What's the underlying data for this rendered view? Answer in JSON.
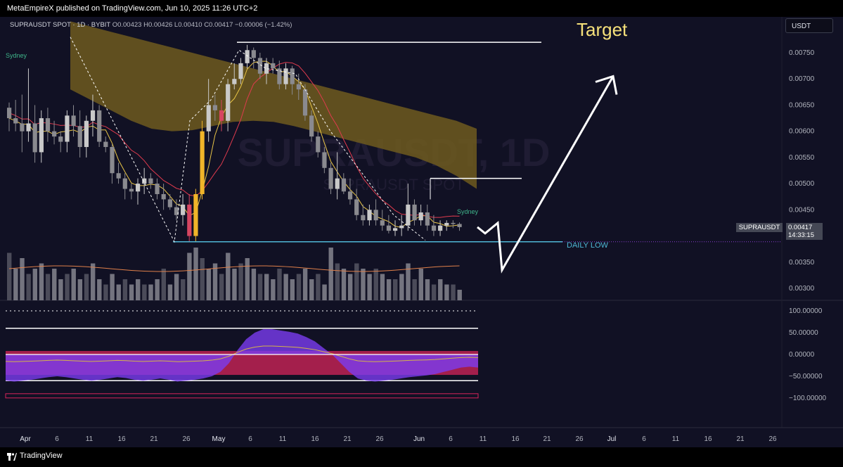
{
  "header": {
    "published_text": "MetaEmpireX published on TradingView.com, Jun 10, 2025 11:26 UTC+2"
  },
  "symbol_bar": {
    "symbol": "SUPRAUSDT SPOT · 1D · BYBIT",
    "open": "O0.00423",
    "high": "H0.00426",
    "low": "L0.00410",
    "close": "C0.00417",
    "change": "−0.00006 (−1.42%)"
  },
  "currency_button": "USDT",
  "watermark": {
    "main": "SUPRAUSDT, 1D",
    "sub": "SUPRAUSDT SPOT"
  },
  "annotations": {
    "target": "Target",
    "daily_low": "DAILY LOW",
    "session_left": "Sydney",
    "session_right": "Sydney"
  },
  "price_tag": {
    "symbol": "SUPRAUSDT",
    "price": "0.00417",
    "countdown": "14:33:15"
  },
  "footer": {
    "brand": "TradingView"
  },
  "colors": {
    "background": "#111124",
    "cloud": "#6e5a1e",
    "candle_up": "#c9c9c9",
    "candle_down": "#8a8a8f",
    "candle_highlight_up": "#f0b429",
    "candle_highlight_down": "#d64561",
    "target_text": "#f5e07a",
    "daily_low_line": "#4fb8d6",
    "oscillator_purple": "#7b3cf0",
    "oscillator_red": "#d6245a"
  },
  "chart_data": {
    "type": "candlestick",
    "timeframe": "1D",
    "ylim": [
      0.0029,
      0.0078
    ],
    "y_ticks": [
      "0.00750",
      "0.00700",
      "0.00650",
      "0.00600",
      "0.00550",
      "0.00500",
      "0.00450",
      "0.00350",
      "0.00300"
    ],
    "x_ticks": [
      "Apr",
      "6",
      "11",
      "16",
      "21",
      "26",
      "May",
      "6",
      "11",
      "16",
      "21",
      "26",
      "Jun",
      "6",
      "11",
      "16",
      "21",
      "26",
      "Jul",
      "6",
      "11",
      "16",
      "21",
      "26"
    ],
    "candles": [
      [
        0.00645,
        0.00655,
        0.006,
        0.00625
      ],
      [
        0.00625,
        0.0066,
        0.006,
        0.00615
      ],
      [
        0.00615,
        0.0067,
        0.0056,
        0.006
      ],
      [
        0.006,
        0.0072,
        0.0058,
        0.00615
      ],
      [
        0.00615,
        0.0065,
        0.0054,
        0.0056
      ],
      [
        0.0056,
        0.0064,
        0.0054,
        0.00625
      ],
      [
        0.00625,
        0.00645,
        0.0058,
        0.006
      ],
      [
        0.006,
        0.0062,
        0.00575,
        0.0059
      ],
      [
        0.0059,
        0.006,
        0.0056,
        0.0058
      ],
      [
        0.0058,
        0.0064,
        0.0056,
        0.0063
      ],
      [
        0.0063,
        0.0065,
        0.0059,
        0.0061
      ],
      [
        0.0061,
        0.0064,
        0.0055,
        0.0057
      ],
      [
        0.0057,
        0.0063,
        0.0055,
        0.0062
      ],
      [
        0.0062,
        0.0067,
        0.0059,
        0.0064
      ],
      [
        0.0064,
        0.0065,
        0.0057,
        0.0058
      ],
      [
        0.0058,
        0.0059,
        0.0056,
        0.0057
      ],
      [
        0.0057,
        0.00575,
        0.005,
        0.0052
      ],
      [
        0.0052,
        0.0054,
        0.005,
        0.0051
      ],
      [
        0.0051,
        0.0052,
        0.0047,
        0.0049
      ],
      [
        0.0049,
        0.005,
        0.0047,
        0.00485
      ],
      [
        0.00485,
        0.0051,
        0.0046,
        0.005
      ],
      [
        0.005,
        0.0053,
        0.0048,
        0.0051
      ],
      [
        0.0051,
        0.0052,
        0.0049,
        0.005
      ],
      [
        0.005,
        0.0051,
        0.0047,
        0.0048
      ],
      [
        0.0048,
        0.005,
        0.0045,
        0.0047
      ],
      [
        0.0047,
        0.0048,
        0.0045,
        0.00455
      ],
      [
        0.00455,
        0.0047,
        0.0043,
        0.0044
      ],
      [
        0.0044,
        0.0048,
        0.0042,
        0.0046
      ],
      [
        0.0046,
        0.0048,
        0.0039,
        0.004
      ],
      [
        0.004,
        0.0049,
        0.0039,
        0.0048
      ],
      [
        0.0048,
        0.0062,
        0.0047,
        0.006
      ],
      [
        0.006,
        0.007,
        0.0058,
        0.0065
      ],
      [
        0.0065,
        0.0067,
        0.0062,
        0.0064
      ],
      [
        0.0064,
        0.0066,
        0.006,
        0.0062
      ],
      [
        0.0062,
        0.007,
        0.006,
        0.0069
      ],
      [
        0.0069,
        0.0073,
        0.0068,
        0.007
      ],
      [
        0.007,
        0.0074,
        0.0069,
        0.0073
      ],
      [
        0.0073,
        0.00765,
        0.0072,
        0.00755
      ],
      [
        0.00755,
        0.0076,
        0.0072,
        0.0074
      ],
      [
        0.0074,
        0.0075,
        0.007,
        0.0071
      ],
      [
        0.0071,
        0.0074,
        0.0069,
        0.0073
      ],
      [
        0.0073,
        0.0074,
        0.0071,
        0.0072
      ],
      [
        0.0072,
        0.00735,
        0.0068,
        0.0069
      ],
      [
        0.0069,
        0.0073,
        0.0068,
        0.0072
      ],
      [
        0.0072,
        0.00725,
        0.0067,
        0.0069
      ],
      [
        0.0069,
        0.0071,
        0.0066,
        0.0068
      ],
      [
        0.0068,
        0.0069,
        0.0062,
        0.0063
      ],
      [
        0.0063,
        0.0064,
        0.0058,
        0.0059
      ],
      [
        0.0059,
        0.006,
        0.0055,
        0.0056
      ],
      [
        0.0056,
        0.0057,
        0.0052,
        0.0053
      ],
      [
        0.0053,
        0.0054,
        0.0048,
        0.0049
      ],
      [
        0.0049,
        0.0056,
        0.0047,
        0.0051
      ],
      [
        0.0051,
        0.0052,
        0.0048,
        0.00485
      ],
      [
        0.00485,
        0.0051,
        0.0046,
        0.0047
      ],
      [
        0.0047,
        0.0049,
        0.0043,
        0.0044
      ],
      [
        0.0044,
        0.0046,
        0.0042,
        0.0043
      ],
      [
        0.0043,
        0.0046,
        0.0042,
        0.0045
      ],
      [
        0.0045,
        0.0047,
        0.0042,
        0.0043
      ],
      [
        0.0043,
        0.0045,
        0.0041,
        0.0042
      ],
      [
        0.0042,
        0.0044,
        0.00405,
        0.0041
      ],
      [
        0.0041,
        0.0043,
        0.004,
        0.00415
      ],
      [
        0.00415,
        0.0044,
        0.004,
        0.0042
      ],
      [
        0.0042,
        0.005,
        0.0041,
        0.0046
      ],
      [
        0.0046,
        0.0047,
        0.0042,
        0.0043
      ],
      [
        0.0043,
        0.0046,
        0.0042,
        0.00445
      ],
      [
        0.00445,
        0.0046,
        0.0041,
        0.0042
      ],
      [
        0.0042,
        0.0044,
        0.004,
        0.0041
      ],
      [
        0.0041,
        0.0043,
        0.004,
        0.0042
      ],
      [
        0.0042,
        0.0043,
        0.0041,
        0.00425
      ],
      [
        0.00425,
        0.0043,
        0.00415,
        0.00423
      ],
      [
        0.00423,
        0.00426,
        0.0041,
        0.00417
      ]
    ],
    "projection_path_prices": [
      0.00417,
      0.00405,
      0.00425,
      0.00335,
      0.00705
    ],
    "levels": {
      "resistance_high": 0.0077,
      "resistance_mid": 0.0051,
      "daily_low": 0.00389
    },
    "oscillator": {
      "y_ticks": [
        "100.00000",
        "50.00000",
        "0.00000",
        "−50.00000",
        "−100.00000"
      ],
      "ylim": [
        -110,
        110
      ],
      "levels": [
        60,
        -60
      ],
      "values": [
        -60,
        -62,
        -60,
        -58,
        -55,
        -52,
        -50,
        -52,
        -55,
        -58,
        -60,
        -58,
        -55,
        -52,
        -54,
        -58,
        -60,
        -58,
        -55,
        -58,
        -62,
        -60,
        -58,
        -55,
        -50,
        -40,
        -20,
        10,
        35,
        50,
        58,
        58,
        55,
        52,
        48,
        40,
        30,
        15,
        0,
        -20,
        -40,
        -55,
        -60,
        -62,
        -60,
        -58,
        -55,
        -52,
        -50,
        -48,
        -45,
        -40,
        -35,
        -30,
        -28,
        -30
      ]
    }
  }
}
